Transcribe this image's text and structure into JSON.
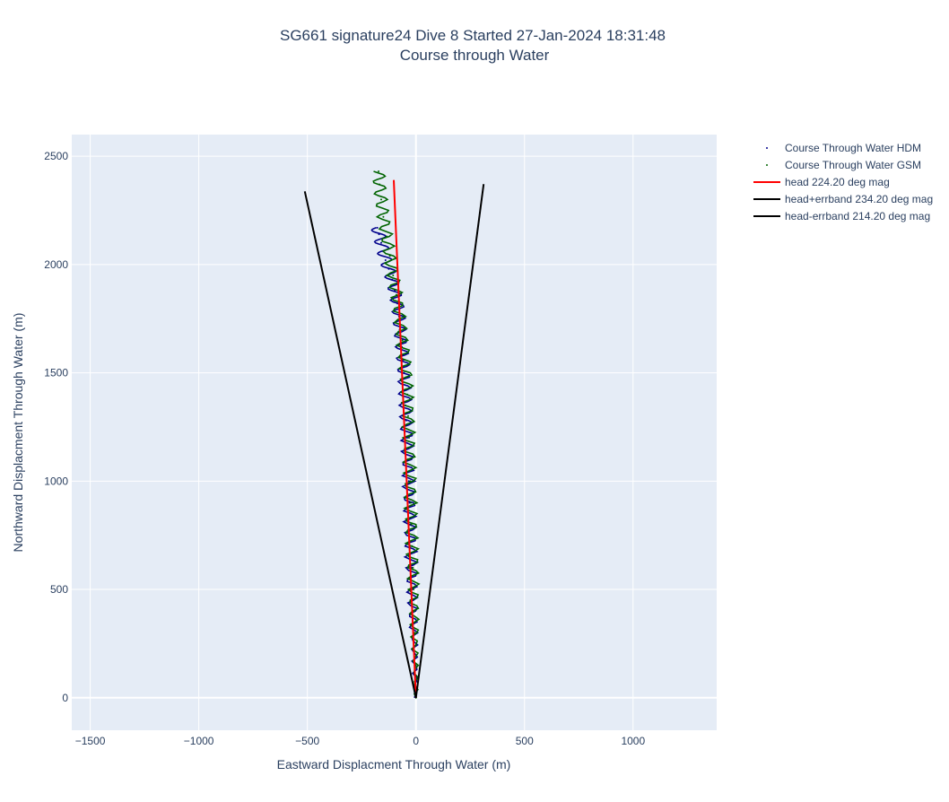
{
  "chart_data": {
    "type": "line",
    "title": "SG661 signature24 Dive 8 Started 27-Jan-2024 18:31:48",
    "subtitle": "Course through Water",
    "xlabel": "Eastward Displacment Through Water (m)",
    "ylabel": "Northward Displacment Through Water (m)",
    "xlim": [
      -1585,
      1385
    ],
    "ylim": [
      -150,
      2600
    ],
    "xticks": [
      -1500,
      -1000,
      -500,
      0,
      500,
      1000
    ],
    "xtick_labels": [
      "−1500",
      "−1000",
      "−500",
      "0",
      "500",
      "1000"
    ],
    "yticks": [
      0,
      500,
      1000,
      1500,
      2000,
      2500
    ],
    "ytick_labels": [
      "0",
      "500",
      "1000",
      "1500",
      "2000",
      "2500"
    ],
    "grid": true,
    "legend_position": "top-right, outside plot",
    "series": [
      {
        "name": "Course Through Water HDM",
        "mode": "markers",
        "color": "#00008b",
        "x": [
          0,
          -4,
          -10,
          -14,
          -18,
          -20,
          -24,
          -27,
          -30,
          -33,
          -38,
          -40,
          -45,
          -48,
          -52,
          -55,
          -60,
          -65,
          -75,
          -78,
          -85,
          -98,
          -110,
          -125,
          -140,
          -150,
          -160,
          -170,
          -178
        ],
        "y": [
          0,
          150,
          300,
          400,
          500,
          600,
          700,
          800,
          900,
          1000,
          1100,
          1200,
          1280,
          1350,
          1420,
          1500,
          1560,
          1620,
          1700,
          1760,
          1820,
          1880,
          1930,
          1980,
          2020,
          2060,
          2100,
          2140,
          2170
        ]
      },
      {
        "name": "Course Through Water GSM",
        "mode": "markers",
        "color": "#006400",
        "x": [
          0,
          -2,
          -6,
          -8,
          -11,
          -14,
          -18,
          -21,
          -24,
          -26,
          -30,
          -32,
          -36,
          -40,
          -45,
          -52,
          -62,
          -75,
          -90,
          -105,
          -120,
          -135,
          -150,
          -160,
          -168,
          -172
        ],
        "y": [
          0,
          150,
          300,
          400,
          500,
          600,
          700,
          800,
          900,
          1000,
          1100,
          1200,
          1300,
          1400,
          1480,
          1560,
          1650,
          1760,
          1860,
          1950,
          2040,
          2130,
          2220,
          2300,
          2370,
          2430
        ]
      },
      {
        "name": "head 224.20 deg mag",
        "mode": "lines",
        "color": "#ff0000",
        "x": [
          0,
          -102
        ],
        "y": [
          0,
          2390
        ]
      },
      {
        "name": "head+errband 234.20 deg mag",
        "mode": "lines",
        "color": "#000000",
        "x": [
          0,
          -512
        ],
        "y": [
          0,
          2338
        ]
      },
      {
        "name": "head-errband 214.20 deg mag",
        "mode": "lines",
        "color": "#000000",
        "x": [
          0,
          312
        ],
        "y": [
          0,
          2371
        ]
      }
    ]
  },
  "colors": {
    "plot_bg": "#e5ecf6",
    "grid": "#ffffff",
    "text": "#2a3f5f"
  }
}
